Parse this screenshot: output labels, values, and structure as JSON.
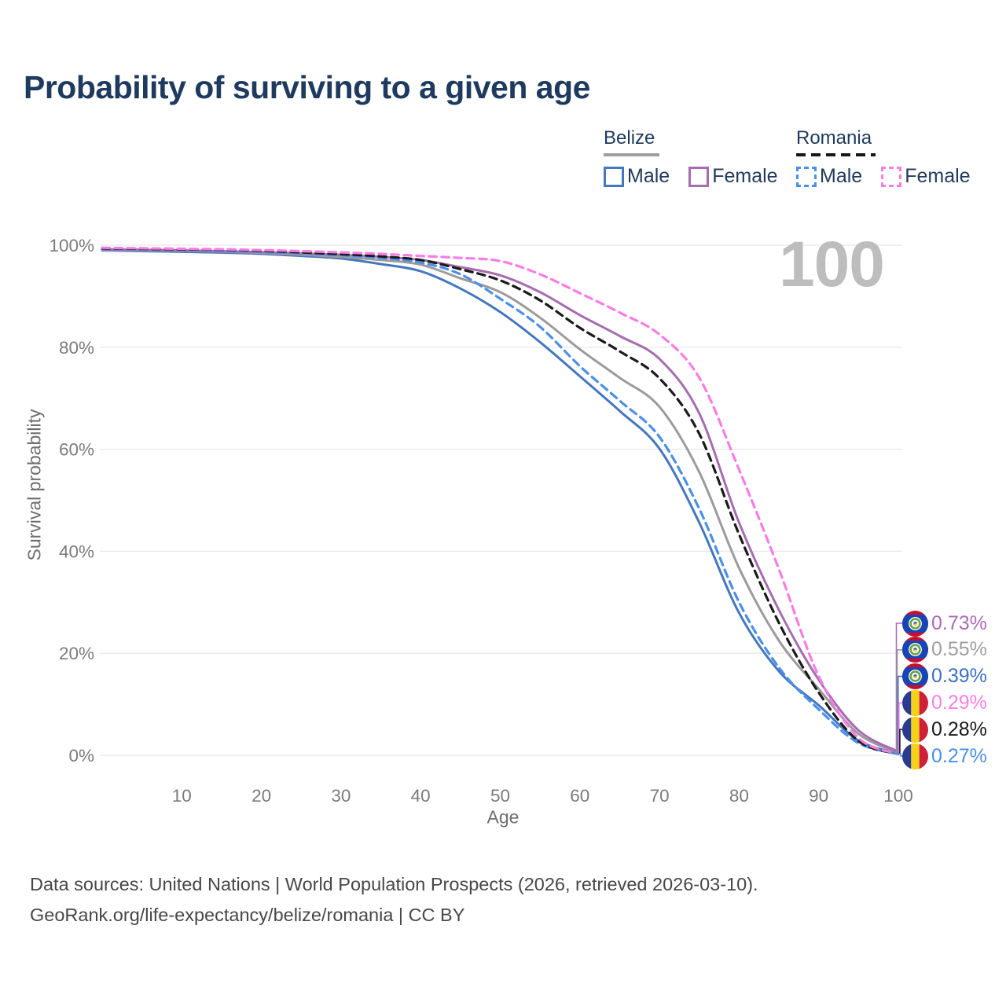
{
  "header": {
    "title": "Probability of surviving to a given age"
  },
  "legend": {
    "belize": {
      "label": "Belize",
      "male_label": "Male",
      "female_label": "Female"
    },
    "romania": {
      "label": "Romania",
      "male_label": "Male",
      "female_label": "Female"
    }
  },
  "chart": {
    "watermark": "100",
    "y_axis_title": "Survival probability",
    "x_axis_title": "Age"
  },
  "footer": {
    "line1": "Data sources: United Nations | World Population Prospects (2026, retrieved 2026-03-10).",
    "line2": "GeoRank.org/life-expectancy/belize/romania | CC BY"
  },
  "chart_data": {
    "type": "line",
    "title": "Probability of surviving to a given age",
    "xlabel": "Age",
    "ylabel": "Survival probability",
    "xlim": [
      0,
      100
    ],
    "ylim": [
      0,
      100
    ],
    "x_ticks": [
      10,
      20,
      30,
      40,
      50,
      60,
      70,
      80,
      90,
      100
    ],
    "y_ticks": [
      "0%",
      "20%",
      "40%",
      "60%",
      "80%",
      "100%"
    ],
    "grid": "horizontal",
    "legend_position": "top-right",
    "ages": [
      0,
      5,
      10,
      15,
      20,
      25,
      30,
      35,
      40,
      45,
      50,
      55,
      60,
      65,
      70,
      75,
      80,
      85,
      90,
      95,
      100
    ],
    "series": [
      {
        "id": "belize-male",
        "country": "Belize",
        "group": "Male",
        "style": "solid",
        "color": "#4577be",
        "values": [
          99.0,
          98.85,
          98.7,
          98.55,
          98.3,
          97.9,
          97.4,
          96.3,
          94.9,
          91.5,
          86.9,
          81.0,
          74.3,
          67.5,
          60.1,
          45.6,
          27.9,
          16.5,
          9.8,
          2.9,
          0.39
        ]
      },
      {
        "id": "belize-all",
        "country": "Belize",
        "group": "All",
        "style": "solid",
        "color": "#9b9b9b",
        "values": [
          99.1,
          99.0,
          98.9,
          98.75,
          98.5,
          98.15,
          97.7,
          97.1,
          96.2,
          93.5,
          90.8,
          85.8,
          79.6,
          74.0,
          68.3,
          55.5,
          36.7,
          22.5,
          13.0,
          4.2,
          0.55
        ]
      },
      {
        "id": "belize-female",
        "country": "Belize",
        "group": "Female",
        "style": "solid",
        "color": "#a76cb0",
        "values": [
          99.2,
          99.1,
          99.0,
          98.85,
          98.65,
          98.4,
          98.1,
          97.7,
          97.1,
          95.7,
          94.1,
          90.8,
          86.3,
          82.2,
          77.7,
          67.0,
          45.6,
          28.5,
          14.8,
          4.9,
          0.73
        ]
      },
      {
        "id": "romania-male",
        "country": "Romania",
        "group": "Male",
        "style": "dashed",
        "color": "#4a90e8",
        "values": [
          99.3,
          99.2,
          99.1,
          98.95,
          98.75,
          98.45,
          98.05,
          97.5,
          96.6,
          94.3,
          89.5,
          84.0,
          76.3,
          69.5,
          62.4,
          48.3,
          30.0,
          17.2,
          9.0,
          2.4,
          0.27
        ]
      },
      {
        "id": "romania-all",
        "country": "Romania",
        "group": "All",
        "style": "dashed",
        "color": "#1a1a1a",
        "values": [
          99.4,
          99.3,
          99.2,
          99.1,
          98.9,
          98.6,
          98.25,
          97.8,
          97.1,
          95.3,
          93.1,
          89.2,
          83.8,
          79.2,
          73.9,
          63.0,
          43.3,
          26.0,
          12.3,
          2.8,
          0.28
        ]
      },
      {
        "id": "romania-female",
        "country": "Romania",
        "group": "Female",
        "style": "dashed",
        "color": "#f97ce5",
        "values": [
          99.5,
          99.4,
          99.3,
          99.2,
          99.05,
          98.85,
          98.6,
          98.3,
          97.9,
          97.5,
          96.9,
          94.3,
          90.6,
          86.8,
          82.5,
          74.0,
          56.0,
          36.5,
          15.5,
          3.4,
          0.29
        ]
      }
    ],
    "end_labels": [
      {
        "text": "0.73%",
        "value": 0.73,
        "series": "belize-female",
        "color": "#ab6bb3",
        "flag": "belize"
      },
      {
        "text": "0.55%",
        "value": 0.55,
        "series": "belize-all",
        "color": "#9e9e9e",
        "flag": "belize"
      },
      {
        "text": "0.39%",
        "value": 0.39,
        "series": "belize-male",
        "color": "#3d6fc4",
        "flag": "belize"
      },
      {
        "text": "0.29%",
        "value": 0.29,
        "series": "romania-female",
        "color": "#fb80e3",
        "flag": "romania"
      },
      {
        "text": "0.28%",
        "value": 0.28,
        "series": "romania-all",
        "color": "#1a1a1a",
        "flag": "romania"
      },
      {
        "text": "0.27%",
        "value": 0.27,
        "series": "romania-male",
        "color": "#4a90e8",
        "flag": "romania"
      }
    ]
  }
}
